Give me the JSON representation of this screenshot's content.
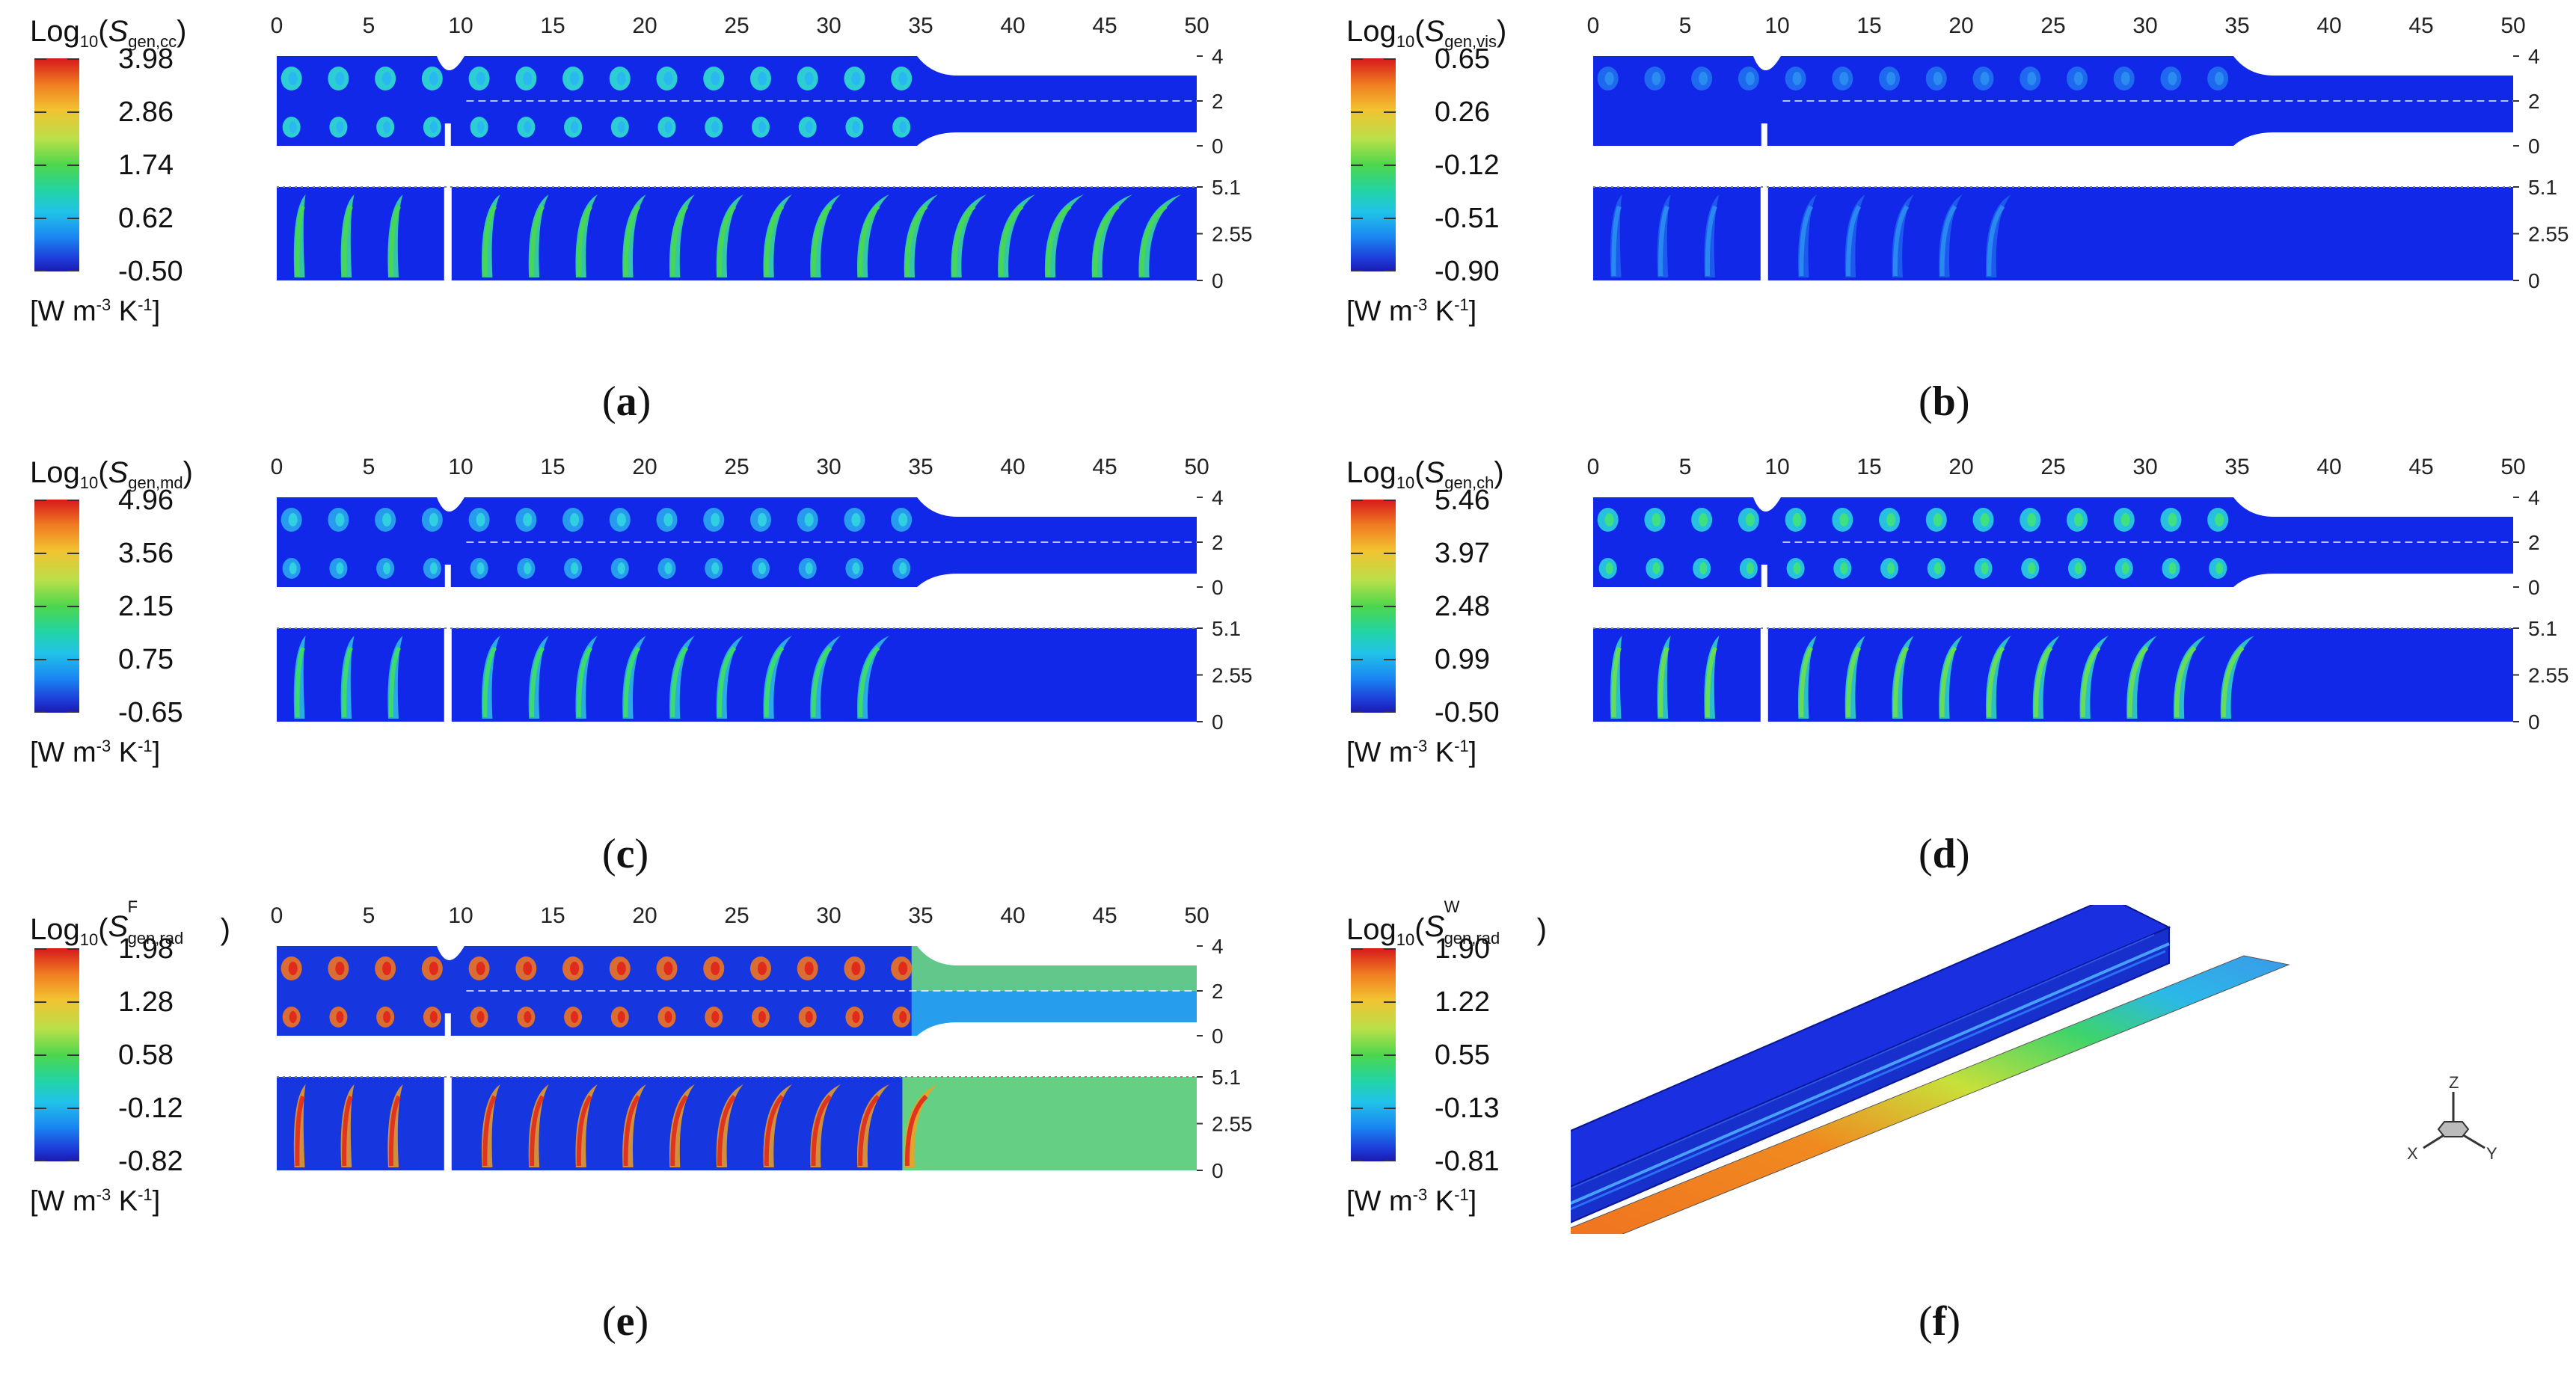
{
  "figure": {
    "panels": [
      {
        "id": "a",
        "label": "(a)",
        "title_prefix": "Log",
        "title_base": "10",
        "title_symbol": "S",
        "title_sub": "gen,cc",
        "colorbar_ticks": [
          "3.98",
          "2.86",
          "1.74",
          "0.62",
          "-0.50"
        ],
        "unit_prefix": "[W m",
        "unit_exp1": "-3",
        "unit_mid": " K",
        "unit_exp2": "-1",
        "unit_suffix": "]",
        "x_ticks": [
          "0",
          "5",
          "10",
          "15",
          "20",
          "25",
          "30",
          "35",
          "40",
          "45",
          "50"
        ],
        "top_y_ticks": [
          "4",
          "2",
          "0"
        ],
        "bottom_y_ticks": [
          "5.1",
          "2.55",
          "0"
        ]
      },
      {
        "id": "b",
        "label": "(b)",
        "title_prefix": "Log",
        "title_base": "10",
        "title_symbol": "S",
        "title_sub": "gen,vis",
        "colorbar_ticks": [
          "0.65",
          "0.26",
          "-0.12",
          "-0.51",
          "-0.90"
        ],
        "unit_prefix": "[W m",
        "unit_exp1": "-3",
        "unit_mid": " K",
        "unit_exp2": "-1",
        "unit_suffix": "]",
        "x_ticks": [
          "0",
          "5",
          "10",
          "15",
          "20",
          "25",
          "30",
          "35",
          "40",
          "45",
          "50"
        ],
        "top_y_ticks": [
          "4",
          "2",
          "0"
        ],
        "bottom_y_ticks": [
          "5.1",
          "2.55",
          "0"
        ]
      },
      {
        "id": "c",
        "label": "(c)",
        "title_prefix": "Log",
        "title_base": "10",
        "title_symbol": "S",
        "title_sub": "gen,md",
        "colorbar_ticks": [
          "4.96",
          "3.56",
          "2.15",
          "0.75",
          "-0.65"
        ],
        "unit_prefix": "[W m",
        "unit_exp1": "-3",
        "unit_mid": " K",
        "unit_exp2": "-1",
        "unit_suffix": "]",
        "x_ticks": [
          "0",
          "5",
          "10",
          "15",
          "20",
          "25",
          "30",
          "35",
          "40",
          "45",
          "50"
        ],
        "top_y_ticks": [
          "4",
          "2",
          "0"
        ],
        "bottom_y_ticks": [
          "5.1",
          "2.55",
          "0"
        ]
      },
      {
        "id": "d",
        "label": "(d)",
        "title_prefix": "Log",
        "title_base": "10",
        "title_symbol": "S",
        "title_sub": "gen,ch",
        "colorbar_ticks": [
          "5.46",
          "3.97",
          "2.48",
          "0.99",
          "-0.50"
        ],
        "unit_prefix": "[W m",
        "unit_exp1": "-3",
        "unit_mid": " K",
        "unit_exp2": "-1",
        "unit_suffix": "]",
        "x_ticks": [
          "0",
          "5",
          "10",
          "15",
          "20",
          "25",
          "30",
          "35",
          "40",
          "45",
          "50"
        ],
        "top_y_ticks": [
          "4",
          "2",
          "0"
        ],
        "bottom_y_ticks": [
          "5.1",
          "2.55",
          "0"
        ]
      },
      {
        "id": "e",
        "label": "(e)",
        "title_prefix": "Log",
        "title_base": "10",
        "title_symbol": "S",
        "title_sub": "gen,rad",
        "title_sup": "F",
        "colorbar_ticks": [
          "1.98",
          "1.28",
          "0.58",
          "-0.12",
          "-0.82"
        ],
        "unit_prefix": "[W m",
        "unit_exp1": "-3",
        "unit_mid": " K",
        "unit_exp2": "-1",
        "unit_suffix": "]",
        "x_ticks": [
          "0",
          "5",
          "10",
          "15",
          "20",
          "25",
          "30",
          "35",
          "40",
          "45",
          "50"
        ],
        "top_y_ticks": [
          "4",
          "2",
          "0"
        ],
        "bottom_y_ticks": [
          "5.1",
          "2.55",
          "0"
        ]
      },
      {
        "id": "f",
        "label": "(f)",
        "title_prefix": "Log",
        "title_base": "10",
        "title_symbol": "S",
        "title_sub": "gen,rad",
        "title_sup": "W",
        "colorbar_ticks": [
          "1.90",
          "1.22",
          "0.55",
          "-0.13",
          "-0.81"
        ],
        "unit_prefix": "[W m",
        "unit_exp1": "-3",
        "unit_mid": " K",
        "unit_exp2": "-1",
        "unit_suffix": "]",
        "axes_labels": {
          "z": "Z",
          "x": "X",
          "y": "Y"
        }
      }
    ]
  }
}
